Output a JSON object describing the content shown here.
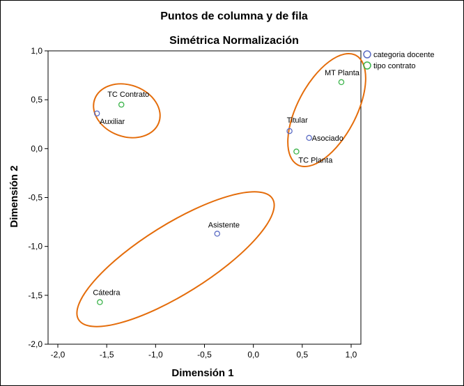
{
  "chart_data": {
    "type": "scatter",
    "title": "Puntos de columna y de fila",
    "subtitle": "Simétrica Normalización",
    "xlabel": "Dimensión 1",
    "ylabel": "Dimensión 2",
    "xlim": [
      -2.0,
      1.0
    ],
    "ylim": [
      -2.0,
      1.0
    ],
    "x_ticks": [
      "-2,0",
      "-1,5",
      "-1,0",
      "-0,5",
      "0,0",
      "0,5",
      "1,0"
    ],
    "y_ticks": [
      "1,0",
      "0,5",
      "0,0",
      "-0,5",
      "-1,0",
      "-1,5",
      "-2,0"
    ],
    "grid": false,
    "legend_position": "top-right",
    "series": [
      {
        "name": "categoria docente",
        "color": "#5b6cc4",
        "points": [
          {
            "label": "Auxiliar",
            "x": -1.6,
            "y": 0.36
          },
          {
            "label": "Titular",
            "x": 0.37,
            "y": 0.18
          },
          {
            "label": "Asociado",
            "x": 0.57,
            "y": 0.11
          },
          {
            "label": "Asistente",
            "x": -0.37,
            "y": -0.87
          }
        ]
      },
      {
        "name": "tipo contrato",
        "color": "#3cb44b",
        "points": [
          {
            "label": "TC Contrato",
            "x": -1.35,
            "y": 0.45
          },
          {
            "label": "MT Planta",
            "x": 0.9,
            "y": 0.68
          },
          {
            "label": "TC Planta",
            "x": 0.44,
            "y": -0.03
          },
          {
            "label": "Cátedra",
            "x": -1.57,
            "y": -1.57
          }
        ]
      }
    ],
    "annotations": {
      "ellipse_color": "#e46c0a",
      "ellipses": [
        {
          "group": [
            "Auxiliar",
            "TC Contrato"
          ]
        },
        {
          "group": [
            "MT Planta",
            "Titular",
            "Asociado",
            "TC Planta"
          ]
        },
        {
          "group": [
            "Asistente",
            "Cátedra"
          ]
        }
      ]
    }
  }
}
